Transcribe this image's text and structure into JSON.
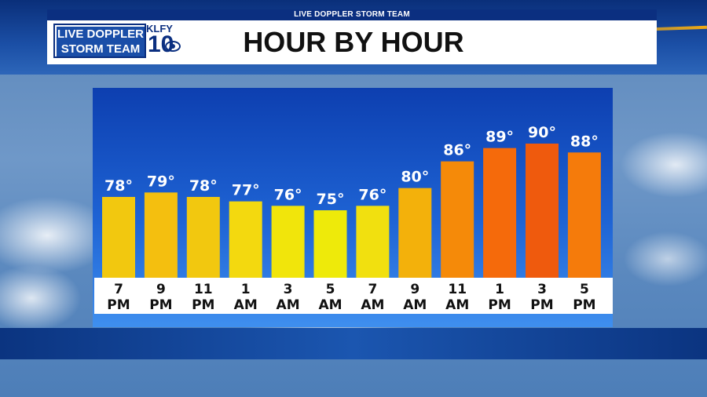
{
  "header": {
    "strip_text": "LIVE DOPPLER STORM TEAM",
    "title": "HOUR BY HOUR",
    "logo": {
      "line1": "LIVE DOPPLER",
      "line2": "STORM TEAM",
      "call_sign": "KLFY",
      "channel": "10"
    }
  },
  "colors": {
    "panel_top": "#0d3fb0",
    "panel_bottom": "#3f8fef",
    "header_strip": "#0b2f80"
  },
  "chart_data": {
    "type": "bar",
    "title": "HOUR BY HOUR",
    "unit": "°",
    "categories": [
      [
        "7",
        "PM"
      ],
      [
        "9",
        "PM"
      ],
      [
        "11",
        "PM"
      ],
      [
        "1",
        "AM"
      ],
      [
        "3",
        "AM"
      ],
      [
        "5",
        "AM"
      ],
      [
        "7",
        "AM"
      ],
      [
        "9",
        "AM"
      ],
      [
        "11",
        "AM"
      ],
      [
        "1",
        "PM"
      ],
      [
        "3",
        "PM"
      ],
      [
        "5",
        "PM"
      ]
    ],
    "values": [
      78,
      79,
      78,
      77,
      76,
      75,
      76,
      80,
      86,
      89,
      90,
      88
    ],
    "value_labels": [
      "78°",
      "79°",
      "78°",
      "77°",
      "76°",
      "75°",
      "76°",
      "80°",
      "86°",
      "89°",
      "90°",
      "88°"
    ],
    "bar_colors": [
      "#f2c80f",
      "#f4bf0f",
      "#f2c80f",
      "#f3d90f",
      "#f1e50b",
      "#eeea0a",
      "#f1e00f",
      "#f3b10b",
      "#f58a09",
      "#f56a0b",
      "#ef5a0d",
      "#f57b0b"
    ],
    "grid": false,
    "legend": "none"
  }
}
